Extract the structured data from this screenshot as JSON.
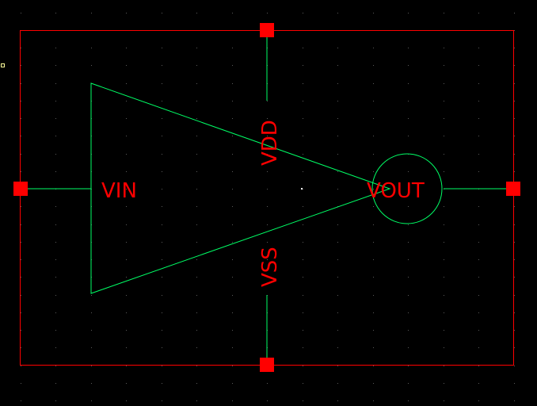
{
  "colors": {
    "background": "#000000",
    "boundary": "#ff0000",
    "pin_square": "#ff0000",
    "pin_label": "#ff0000",
    "wire": "#00ff66",
    "symbol": "#00ff66",
    "grid_dot": "#5a5a5a",
    "origin_dot": "#ffffff",
    "marker": "#ffff99"
  },
  "symbol": {
    "shape": "inverter-triangle-with-output-bubble"
  },
  "pins": {
    "vin": {
      "label": "VIN",
      "side": "left"
    },
    "vout": {
      "label": "VOUT",
      "side": "right"
    },
    "vdd": {
      "label": "VDD",
      "side": "top"
    },
    "vss": {
      "label": "VSS",
      "side": "bottom"
    }
  }
}
